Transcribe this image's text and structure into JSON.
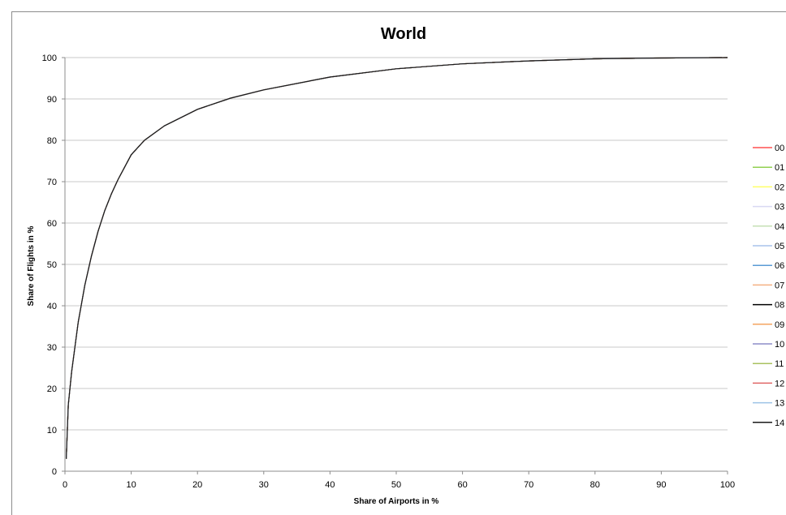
{
  "chart_data": {
    "type": "line",
    "title": "World",
    "xlabel": "Share of Airports in %",
    "ylabel": "Share of Flights in %",
    "xlim": [
      0,
      100
    ],
    "ylim": [
      0,
      100
    ],
    "x_ticks": [
      "0",
      "10",
      "20",
      "30",
      "40",
      "50",
      "60",
      "70",
      "80",
      "90",
      "100"
    ],
    "y_ticks": [
      "0",
      "10",
      "20",
      "30",
      "40",
      "50",
      "60",
      "70",
      "80",
      "90",
      "100"
    ],
    "grid": "horizontal",
    "legend_position": "right",
    "x": [
      0.2,
      0.5,
      1,
      2,
      3,
      4,
      5,
      6,
      7,
      8,
      10,
      12,
      15,
      20,
      25,
      30,
      40,
      50,
      60,
      70,
      80,
      90,
      100
    ],
    "series": [
      {
        "name": "00",
        "color": "#ff5050",
        "values": [
          3,
          16,
          24,
          36,
          45,
          52,
          58,
          63,
          67,
          70.5,
          76.5,
          80,
          83.5,
          87.5,
          90.2,
          92.2,
          95.3,
          97.3,
          98.5,
          99.2,
          99.7,
          99.9,
          100
        ]
      },
      {
        "name": "01",
        "color": "#92d050",
        "values": [
          3,
          16,
          24,
          36,
          45,
          52,
          58,
          63,
          67,
          70.5,
          76.5,
          80,
          83.5,
          87.5,
          90.2,
          92.2,
          95.3,
          97.3,
          98.5,
          99.2,
          99.7,
          99.9,
          100
        ]
      },
      {
        "name": "02",
        "color": "#ffff66",
        "values": [
          3,
          16,
          24,
          36,
          45,
          52,
          58,
          63,
          67,
          70.5,
          76.5,
          80,
          83.5,
          87.5,
          90.2,
          92.2,
          95.3,
          97.3,
          98.5,
          99.2,
          99.7,
          99.9,
          100
        ]
      },
      {
        "name": "03",
        "color": "#d9d9f3",
        "values": [
          3,
          16,
          24,
          36,
          45,
          52,
          58,
          63,
          67,
          70.5,
          76.5,
          80,
          83.5,
          87.5,
          90.2,
          92.2,
          95.3,
          97.3,
          98.5,
          99.2,
          99.7,
          99.9,
          100
        ]
      },
      {
        "name": "04",
        "color": "#c6e0b4",
        "values": [
          3,
          16,
          24,
          36,
          45,
          52,
          58,
          63,
          67,
          70.5,
          76.5,
          80,
          83.5,
          87.5,
          90.2,
          92.2,
          95.3,
          97.3,
          98.5,
          99.2,
          99.7,
          99.9,
          100
        ]
      },
      {
        "name": "05",
        "color": "#a9c4eb",
        "values": [
          3,
          16,
          24,
          36,
          45,
          52,
          58,
          63,
          67,
          70.5,
          76.5,
          80,
          83.5,
          87.5,
          90.2,
          92.2,
          95.3,
          97.3,
          98.5,
          99.2,
          99.7,
          99.9,
          100
        ]
      },
      {
        "name": "06",
        "color": "#5b9bd5",
        "values": [
          3,
          16,
          24,
          36,
          45,
          52,
          58,
          63,
          67,
          70.5,
          76.5,
          80,
          83.5,
          87.5,
          90.2,
          92.2,
          95.3,
          97.3,
          98.5,
          99.2,
          99.7,
          99.9,
          100
        ]
      },
      {
        "name": "07",
        "color": "#f4b183",
        "values": [
          3,
          16,
          24,
          36,
          45,
          52,
          58,
          63,
          67,
          70.5,
          76.5,
          80,
          83.5,
          87.5,
          90.2,
          92.2,
          95.3,
          97.3,
          98.5,
          99.2,
          99.7,
          99.9,
          100
        ]
      },
      {
        "name": "08",
        "color": "#000000",
        "values": [
          3,
          16,
          24,
          36,
          45,
          52,
          58,
          63,
          67,
          70.5,
          76.5,
          80,
          83.5,
          87.5,
          90.2,
          92.2,
          95.3,
          97.3,
          98.5,
          99.2,
          99.7,
          99.9,
          100
        ]
      },
      {
        "name": "09",
        "color": "#f4a460",
        "values": [
          3,
          16,
          24,
          36,
          45,
          52,
          58,
          63,
          67,
          70.5,
          76.5,
          80,
          83.5,
          87.5,
          90.2,
          92.2,
          95.3,
          97.3,
          98.5,
          99.2,
          99.7,
          99.9,
          100
        ]
      },
      {
        "name": "10",
        "color": "#8e8ec9",
        "values": [
          3,
          16,
          24,
          36,
          45,
          52,
          58,
          63,
          67,
          70.5,
          76.5,
          80,
          83.5,
          87.5,
          90.2,
          92.2,
          95.3,
          97.3,
          98.5,
          99.2,
          99.7,
          99.9,
          100
        ]
      },
      {
        "name": "11",
        "color": "#a9c25f",
        "values": [
          3,
          16,
          24,
          36,
          45,
          52,
          58,
          63,
          67,
          70.5,
          76.5,
          80,
          83.5,
          87.5,
          90.2,
          92.2,
          95.3,
          97.3,
          98.5,
          99.2,
          99.7,
          99.9,
          100
        ]
      },
      {
        "name": "12",
        "color": "#e06666",
        "values": [
          3,
          16,
          24,
          36,
          45,
          52,
          58,
          63,
          67,
          70.5,
          76.5,
          80,
          83.5,
          87.5,
          90.2,
          92.2,
          95.3,
          97.3,
          98.5,
          99.2,
          99.7,
          99.9,
          100
        ]
      },
      {
        "name": "13",
        "color": "#9dc3e6",
        "values": [
          3,
          16,
          24,
          36,
          45,
          52,
          58,
          63,
          67,
          70.5,
          76.5,
          80,
          83.5,
          87.5,
          90.2,
          92.2,
          95.3,
          97.3,
          98.5,
          99.2,
          99.7,
          99.9,
          100
        ]
      },
      {
        "name": "14",
        "color": "#1a1a1a",
        "values": [
          3,
          16,
          24,
          36,
          45,
          52,
          58,
          63,
          67,
          70.5,
          76.5,
          80,
          83.5,
          87.5,
          90.2,
          92.2,
          95.3,
          97.3,
          98.5,
          99.2,
          99.7,
          99.9,
          100
        ]
      }
    ]
  }
}
